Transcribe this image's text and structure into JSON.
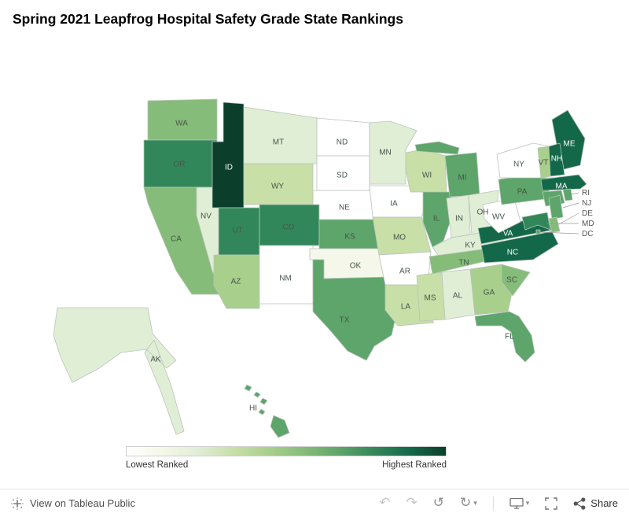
{
  "title": "Spring 2021 Leapfrog Hospital Safety Grade State Rankings",
  "legend": {
    "low_label": "Lowest Ranked",
    "high_label": "Highest Ranked"
  },
  "footer": {
    "view_text": "View on Tableau Public",
    "undo_glyph": "↶",
    "redo_glyph": "↷",
    "replay_glyph": "↺",
    "refresh_glyph": "↻",
    "caret_glyph": "▾",
    "share_label": "Share"
  },
  "chart_data": {
    "type": "heatmap",
    "subtype": "us-state-choropleth",
    "title": "Spring 2021 Leapfrog Hospital Safety Grade State Rankings",
    "legend": {
      "low": "Lowest Ranked",
      "high": "Highest Ranked",
      "position": "bottom"
    },
    "value_encoding": "color level 0 (lowest ranked, white) to 9 (highest ranked, dark green), read from map shading",
    "palette": [
      "#ffffff",
      "#f4f7e9",
      "#e1eed6",
      "#c8dfa8",
      "#a9cf8d",
      "#86bc79",
      "#5da56a",
      "#32875a",
      "#14684a",
      "#0b3f2c"
    ],
    "states": [
      {
        "abbr": "AK",
        "level": 2
      },
      {
        "abbr": "HI",
        "level": 6
      },
      {
        "abbr": "WA",
        "level": 5
      },
      {
        "abbr": "OR",
        "level": 7
      },
      {
        "abbr": "CA",
        "level": 5
      },
      {
        "abbr": "NV",
        "level": 2
      },
      {
        "abbr": "ID",
        "level": 9
      },
      {
        "abbr": "MT",
        "level": 2
      },
      {
        "abbr": "WY",
        "level": 3
      },
      {
        "abbr": "UT",
        "level": 7
      },
      {
        "abbr": "CO",
        "level": 7
      },
      {
        "abbr": "AZ",
        "level": 4
      },
      {
        "abbr": "NM",
        "level": 0
      },
      {
        "abbr": "ND",
        "level": 0
      },
      {
        "abbr": "SD",
        "level": 0
      },
      {
        "abbr": "NE",
        "level": 0
      },
      {
        "abbr": "KS",
        "level": 6
      },
      {
        "abbr": "OK",
        "level": 1
      },
      {
        "abbr": "TX",
        "level": 6
      },
      {
        "abbr": "MN",
        "level": 2
      },
      {
        "abbr": "IA",
        "level": 0
      },
      {
        "abbr": "MO",
        "level": 3
      },
      {
        "abbr": "AR",
        "level": 0
      },
      {
        "abbr": "LA",
        "level": 3
      },
      {
        "abbr": "WI",
        "level": 3
      },
      {
        "abbr": "IL",
        "level": 6
      },
      {
        "abbr": "MS",
        "level": 3
      },
      {
        "abbr": "MI",
        "level": 6
      },
      {
        "abbr": "IN",
        "level": 2
      },
      {
        "abbr": "OH",
        "level": 2
      },
      {
        "abbr": "KY",
        "level": 2
      },
      {
        "abbr": "TN",
        "level": 5
      },
      {
        "abbr": "AL",
        "level": 2
      },
      {
        "abbr": "GA",
        "level": 4
      },
      {
        "abbr": "FL",
        "level": 6
      },
      {
        "abbr": "SC",
        "level": 5
      },
      {
        "abbr": "NC",
        "level": 8
      },
      {
        "abbr": "VA",
        "level": 8
      },
      {
        "abbr": "WV",
        "level": 0
      },
      {
        "abbr": "PA",
        "level": 6
      },
      {
        "abbr": "NY",
        "level": 0
      },
      {
        "abbr": "ME",
        "level": 8
      },
      {
        "abbr": "VT",
        "level": 4
      },
      {
        "abbr": "NH",
        "level": 8
      },
      {
        "abbr": "MA",
        "level": 8
      },
      {
        "abbr": "CT",
        "level": 6
      },
      {
        "abbr": "RI",
        "level": 6
      },
      {
        "abbr": "NJ",
        "level": 6
      },
      {
        "abbr": "DE",
        "level": 5
      },
      {
        "abbr": "MD",
        "level": 7
      },
      {
        "abbr": "DC",
        "level": 6
      }
    ],
    "callouts": [
      "RI",
      "NJ",
      "DE",
      "MD",
      "DC"
    ]
  }
}
